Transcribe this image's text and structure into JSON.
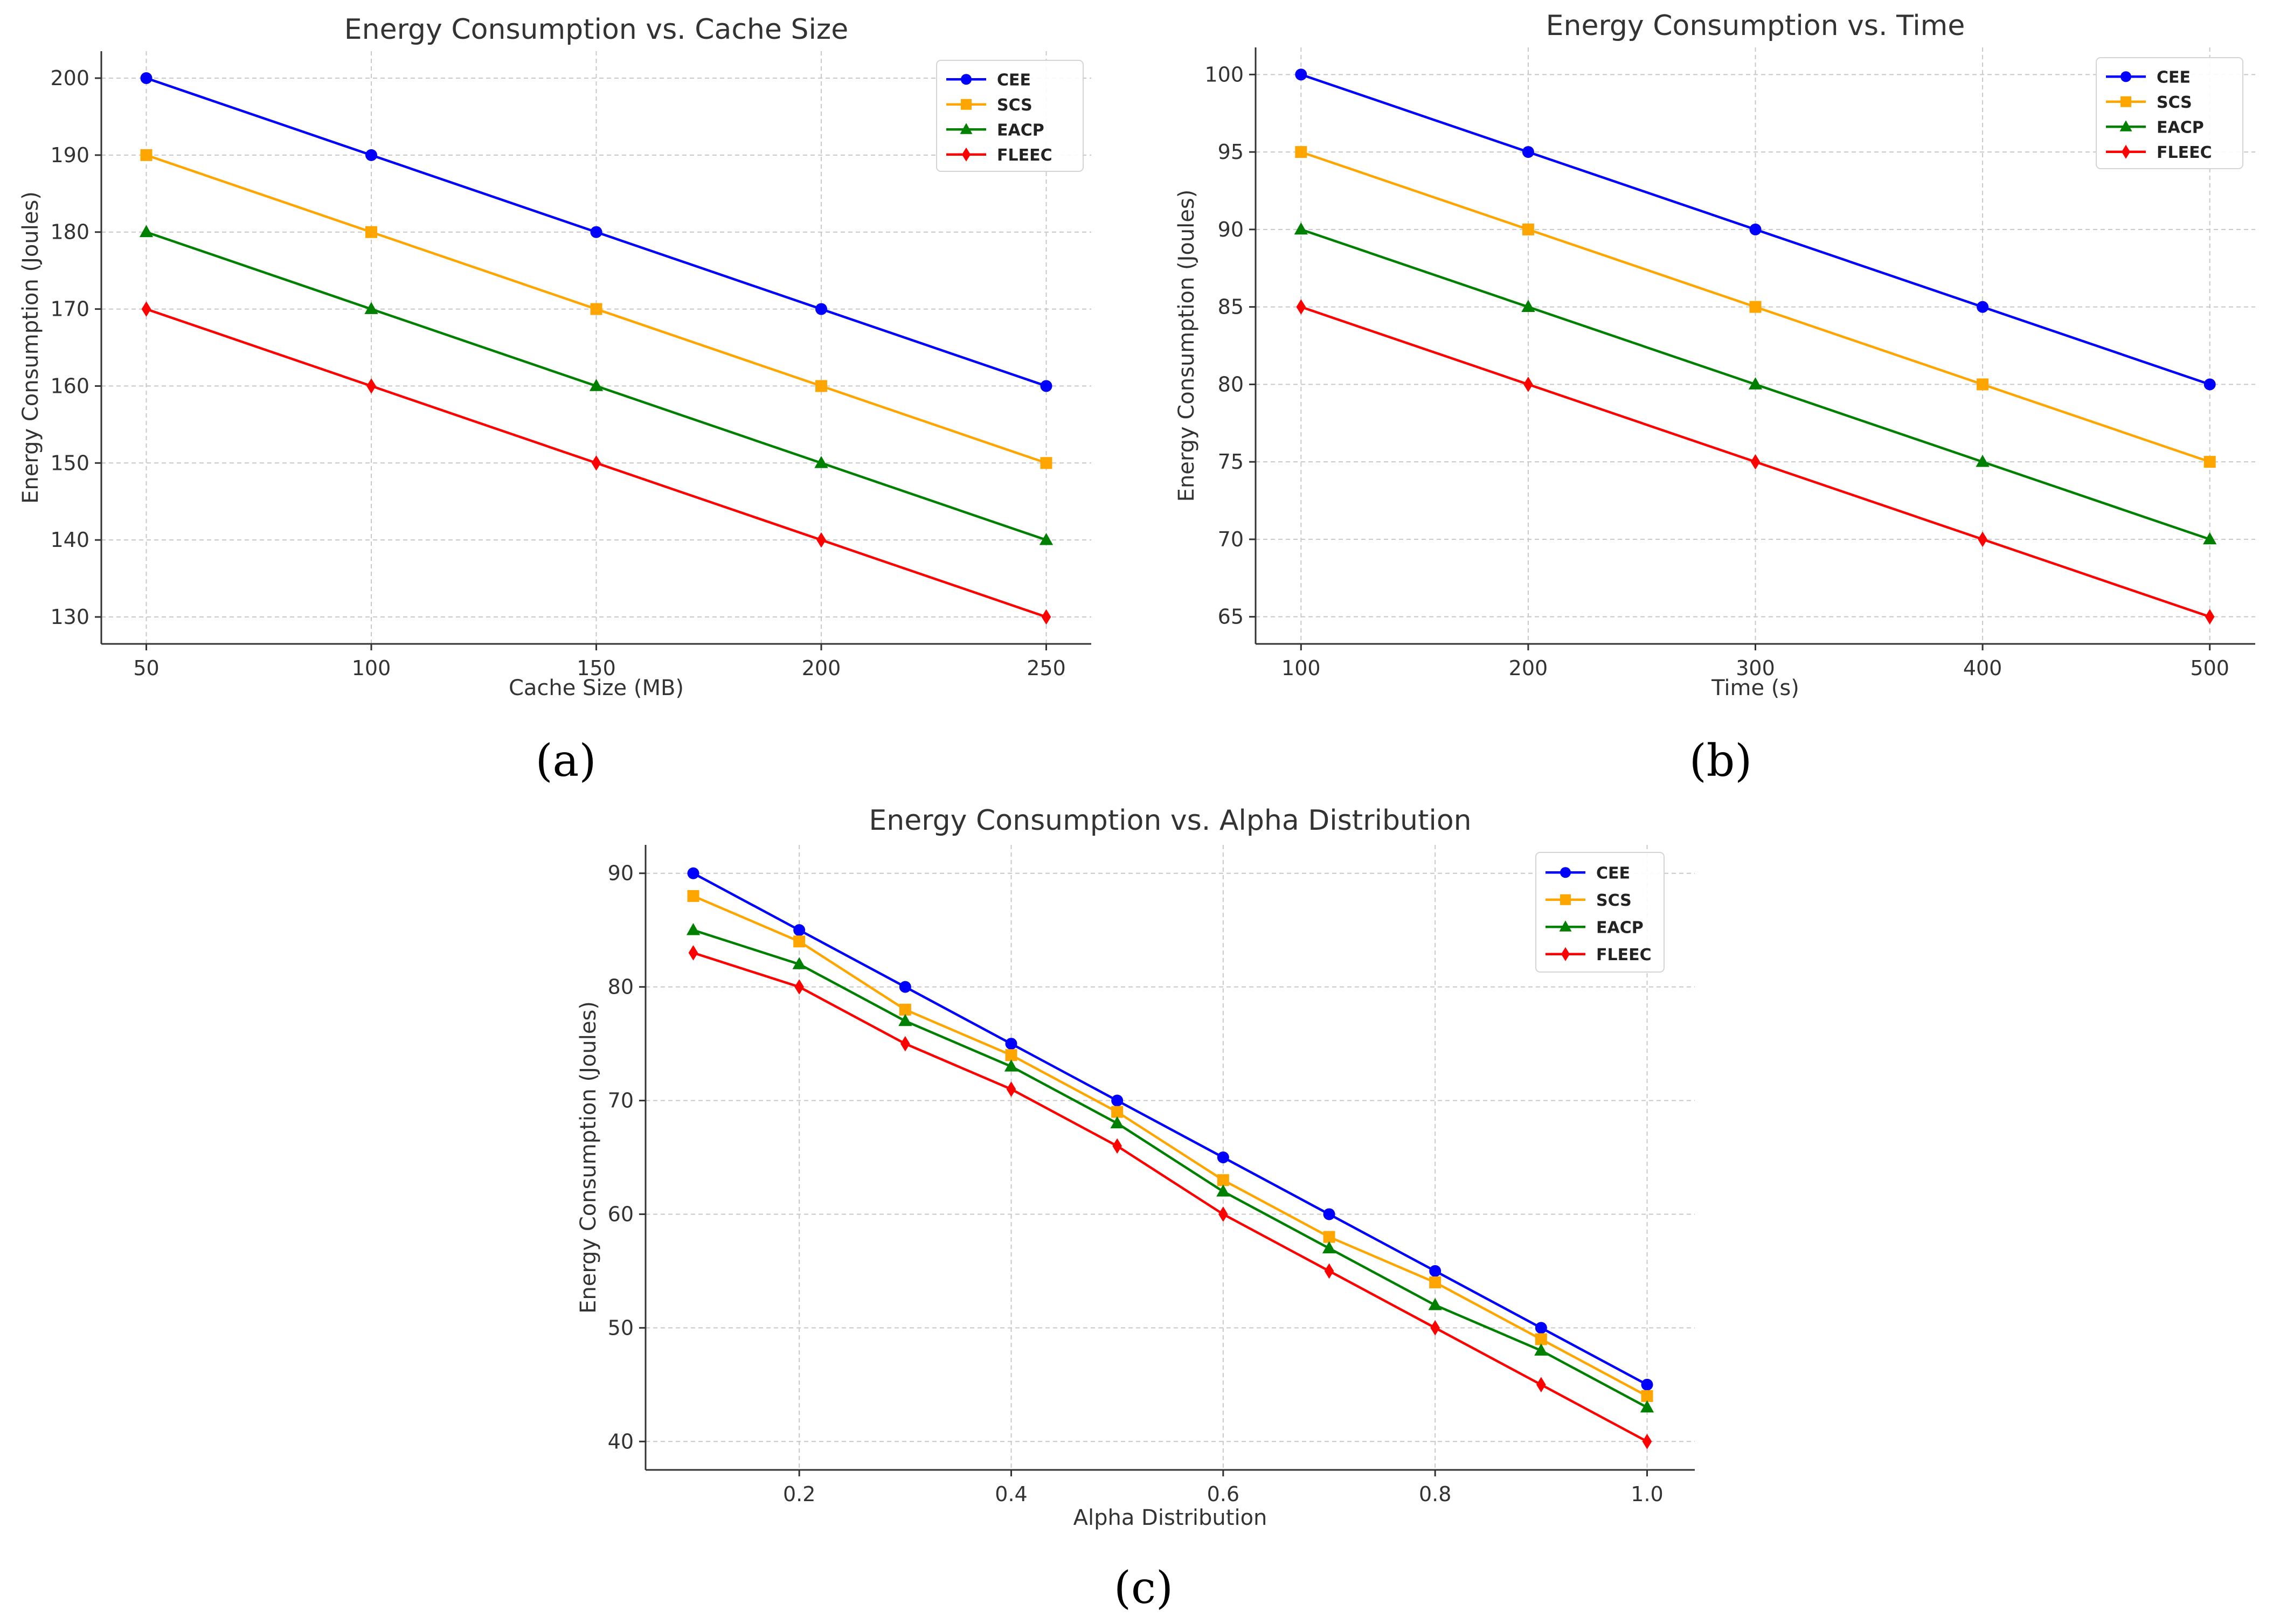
{
  "colors": {
    "CEE": "#0000ff",
    "SCS": "#ffa500",
    "EACP": "#008000",
    "FLEEC": "#ff0000",
    "grid": "#c8c8c8",
    "axis": "#333333",
    "text": "#333333"
  },
  "chart_data": [
    {
      "type": "line",
      "title": "Energy Consumption vs. Cache Size",
      "xlabel": "Cache Size (MB)",
      "ylabel": "Energy Consumption (Joules)",
      "caption": "(a)",
      "x": [
        50,
        100,
        150,
        200,
        250
      ],
      "xticks": [
        "50",
        "100",
        "150",
        "200",
        "250"
      ],
      "xtick_values": [
        50,
        100,
        150,
        200,
        250
      ],
      "yticks": [
        "130",
        "140",
        "150",
        "160",
        "170",
        "180",
        "190",
        "200"
      ],
      "ytick_values": [
        130,
        140,
        150,
        160,
        170,
        180,
        190,
        200
      ],
      "xlim": [
        40,
        260
      ],
      "ylim": [
        126.5,
        203.5
      ],
      "grid": true,
      "legend_position": "top-right",
      "series": [
        {
          "name": "CEE",
          "marker": "circle",
          "values": [
            200,
            190,
            180,
            170,
            160
          ]
        },
        {
          "name": "SCS",
          "marker": "square",
          "values": [
            190,
            180,
            170,
            160,
            150
          ]
        },
        {
          "name": "EACP",
          "marker": "triangle",
          "values": [
            180,
            170,
            160,
            150,
            140
          ]
        },
        {
          "name": "FLEEC",
          "marker": "diamond",
          "values": [
            170,
            160,
            150,
            140,
            130
          ]
        }
      ]
    },
    {
      "type": "line",
      "title": "Energy Consumption vs. Time",
      "xlabel": "Time (s)",
      "ylabel": "Energy Consumption (Joules)",
      "caption": "(b)",
      "x": [
        100,
        200,
        300,
        400,
        500
      ],
      "xticks": [
        "100",
        "200",
        "300",
        "400",
        "500"
      ],
      "xtick_values": [
        100,
        200,
        300,
        400,
        500
      ],
      "yticks": [
        "65",
        "70",
        "75",
        "80",
        "85",
        "90",
        "95",
        "100"
      ],
      "ytick_values": [
        65,
        70,
        75,
        80,
        85,
        90,
        95,
        100
      ],
      "xlim": [
        80,
        520
      ],
      "ylim": [
        63.25,
        101.75
      ],
      "grid": true,
      "legend_position": "top-right",
      "series": [
        {
          "name": "CEE",
          "marker": "circle",
          "values": [
            100,
            95,
            90,
            85,
            80
          ]
        },
        {
          "name": "SCS",
          "marker": "square",
          "values": [
            95,
            90,
            85,
            80,
            75
          ]
        },
        {
          "name": "EACP",
          "marker": "triangle",
          "values": [
            90,
            85,
            80,
            75,
            70
          ]
        },
        {
          "name": "FLEEC",
          "marker": "diamond",
          "values": [
            85,
            80,
            75,
            70,
            65
          ]
        }
      ]
    },
    {
      "type": "line",
      "title": "Energy Consumption vs. Alpha Distribution",
      "xlabel": "Alpha Distribution",
      "ylabel": "Energy Consumption (Joules)",
      "caption": "(c)",
      "x": [
        0.1,
        0.2,
        0.3,
        0.4,
        0.5,
        0.6,
        0.7,
        0.8,
        0.9,
        1.0
      ],
      "xticks": [
        "0.2",
        "0.4",
        "0.6",
        "0.8",
        "1.0"
      ],
      "xtick_values": [
        0.2,
        0.4,
        0.6,
        0.8,
        1.0
      ],
      "yticks": [
        "40",
        "50",
        "60",
        "70",
        "80",
        "90"
      ],
      "ytick_values": [
        40,
        50,
        60,
        70,
        80,
        90
      ],
      "xlim": [
        0.055,
        1.045
      ],
      "ylim": [
        37.5,
        92.5
      ],
      "grid": true,
      "legend_position": "top-right",
      "series": [
        {
          "name": "CEE",
          "marker": "circle",
          "values": [
            90,
            85,
            80,
            75,
            70,
            65,
            60,
            55,
            50,
            45
          ]
        },
        {
          "name": "SCS",
          "marker": "square",
          "values": [
            88,
            84,
            78,
            74,
            69,
            63,
            58,
            54,
            49,
            44
          ]
        },
        {
          "name": "EACP",
          "marker": "triangle",
          "values": [
            85,
            82,
            77,
            73,
            68,
            62,
            57,
            52,
            48,
            43
          ]
        },
        {
          "name": "FLEEC",
          "marker": "diamond",
          "values": [
            83,
            80,
            75,
            71,
            66,
            60,
            55,
            50,
            45,
            40
          ]
        }
      ]
    }
  ]
}
